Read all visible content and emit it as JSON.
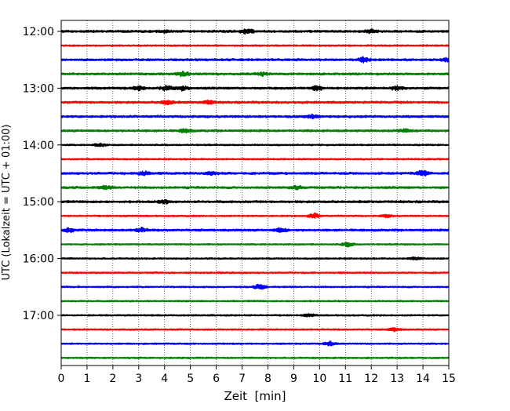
{
  "chart_data": {
    "type": "line",
    "subtype": "helicorder (seismogram drum plot)",
    "xlabel": "Zeit  [min]",
    "ylabel": "UTC (Lokalzeit = UTC + 01:00)",
    "xlim": [
      0,
      15
    ],
    "x_ticks": [
      "0",
      "1",
      "2",
      "3",
      "4",
      "5",
      "6",
      "7",
      "8",
      "9",
      "10",
      "11",
      "12",
      "13",
      "14",
      "15"
    ],
    "y_tick_labels": [
      "12:00",
      "13:00",
      "14:00",
      "15:00",
      "16:00",
      "17:00"
    ],
    "grid": "vertical dotted lines at each minute",
    "color_cycle": [
      "#000000",
      "#ff0000",
      "#0000ff",
      "#008000"
    ],
    "series": [
      {
        "start": "12:00",
        "color": "#000000",
        "amplitude": 3,
        "events": [
          [
            7.2,
            6
          ],
          [
            4.0,
            3
          ],
          [
            12.0,
            4
          ]
        ]
      },
      {
        "start": "12:15",
        "color": "#ff0000",
        "amplitude": 2,
        "events": []
      },
      {
        "start": "12:30",
        "color": "#0000ff",
        "amplitude": 3,
        "events": [
          [
            11.7,
            6
          ],
          [
            15.0,
            5
          ]
        ]
      },
      {
        "start": "12:45",
        "color": "#008000",
        "amplitude": 3,
        "events": [
          [
            4.7,
            6
          ],
          [
            7.8,
            4
          ]
        ]
      },
      {
        "start": "13:00",
        "color": "#000000",
        "amplitude": 3,
        "events": [
          [
            3.0,
            5
          ],
          [
            4.1,
            6
          ],
          [
            4.7,
            5
          ],
          [
            9.9,
            6
          ],
          [
            13.0,
            5
          ]
        ]
      },
      {
        "start": "13:15",
        "color": "#ff0000",
        "amplitude": 3,
        "events": [
          [
            4.1,
            5
          ],
          [
            5.7,
            4
          ]
        ]
      },
      {
        "start": "13:30",
        "color": "#0000ff",
        "amplitude": 3,
        "events": [
          [
            9.7,
            4
          ]
        ]
      },
      {
        "start": "13:45",
        "color": "#008000",
        "amplitude": 3,
        "events": [
          [
            4.8,
            4
          ],
          [
            13.3,
            4
          ]
        ]
      },
      {
        "start": "14:00",
        "color": "#000000",
        "amplitude": 2,
        "events": [
          [
            1.5,
            4
          ]
        ]
      },
      {
        "start": "14:15",
        "color": "#ff0000",
        "amplitude": 2,
        "events": []
      },
      {
        "start": "14:30",
        "color": "#0000ff",
        "amplitude": 3,
        "events": [
          [
            3.2,
            5
          ],
          [
            5.8,
            4
          ],
          [
            14.0,
            7
          ]
        ]
      },
      {
        "start": "14:45",
        "color": "#008000",
        "amplitude": 3,
        "events": [
          [
            1.7,
            4
          ],
          [
            9.1,
            4
          ]
        ]
      },
      {
        "start": "15:00",
        "color": "#000000",
        "amplitude": 3,
        "events": [
          [
            4.0,
            4
          ]
        ]
      },
      {
        "start": "15:15",
        "color": "#ff0000",
        "amplitude": 2,
        "events": [
          [
            9.8,
            6
          ],
          [
            12.6,
            3
          ]
        ]
      },
      {
        "start": "15:30",
        "color": "#0000ff",
        "amplitude": 3,
        "events": [
          [
            0.3,
            5
          ],
          [
            3.1,
            5
          ],
          [
            8.5,
            5
          ]
        ]
      },
      {
        "start": "15:45",
        "color": "#008000",
        "amplitude": 2,
        "events": [
          [
            11.1,
            5
          ]
        ]
      },
      {
        "start": "16:00",
        "color": "#000000",
        "amplitude": 2,
        "events": [
          [
            13.7,
            4
          ]
        ]
      },
      {
        "start": "16:15",
        "color": "#ff0000",
        "amplitude": 2,
        "events": []
      },
      {
        "start": "16:30",
        "color": "#0000ff",
        "amplitude": 2,
        "events": [
          [
            7.7,
            6
          ]
        ]
      },
      {
        "start": "16:45",
        "color": "#008000",
        "amplitude": 2,
        "events": []
      },
      {
        "start": "17:00",
        "color": "#000000",
        "amplitude": 2,
        "events": [
          [
            9.6,
            3
          ]
        ]
      },
      {
        "start": "17:15",
        "color": "#ff0000",
        "amplitude": 2,
        "events": [
          [
            12.9,
            4
          ]
        ]
      },
      {
        "start": "17:30",
        "color": "#0000ff",
        "amplitude": 2,
        "events": [
          [
            10.4,
            5
          ]
        ]
      },
      {
        "start": "17:45",
        "color": "#008000",
        "amplitude": 2,
        "events": []
      }
    ]
  }
}
